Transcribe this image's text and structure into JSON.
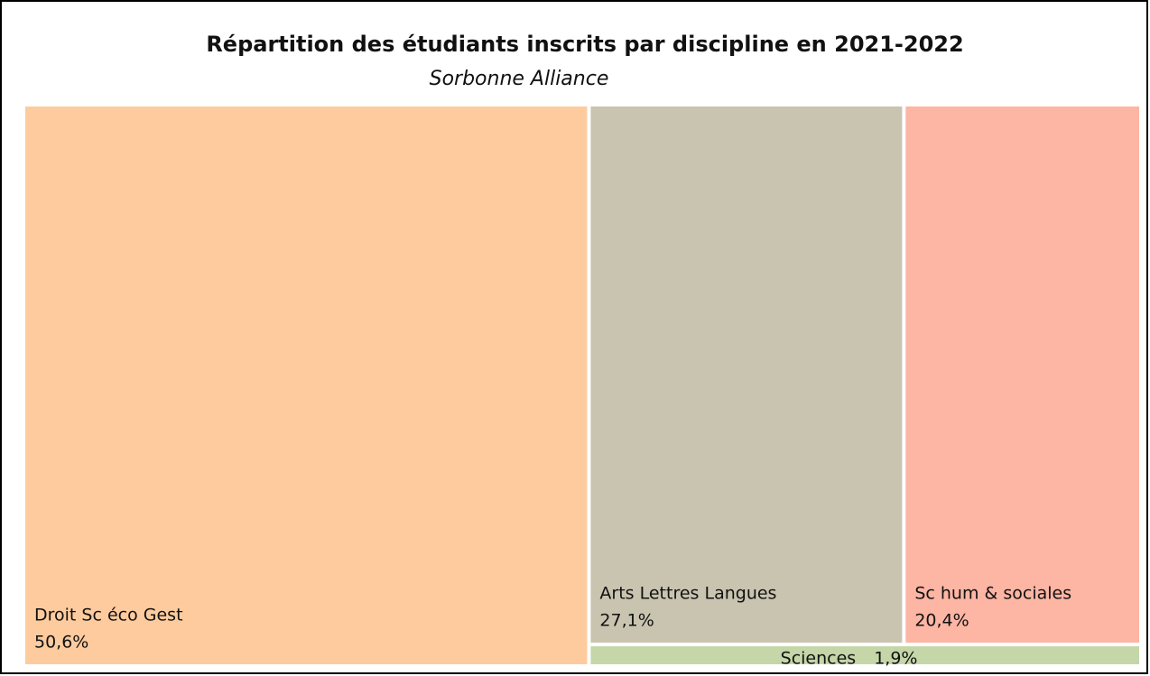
{
  "chart_data": {
    "type": "treemap",
    "title": "Répartition des étudiants inscrits par discipline en 2021-2022",
    "subtitle": "Sorbonne Alliance",
    "categories": [
      "Droit Sc éco Gest",
      "Arts Lettres Langues",
      "Sc hum & sociales",
      "Sciences"
    ],
    "values": [
      50.6,
      27.1,
      20.4,
      1.9
    ],
    "value_labels": [
      "50,6%",
      "27,1%",
      "20,4%",
      "1,9%"
    ],
    "colors": [
      "#fdcb9e",
      "#c9c4b0",
      "#fdb5a4",
      "#c5d6a8"
    ]
  }
}
